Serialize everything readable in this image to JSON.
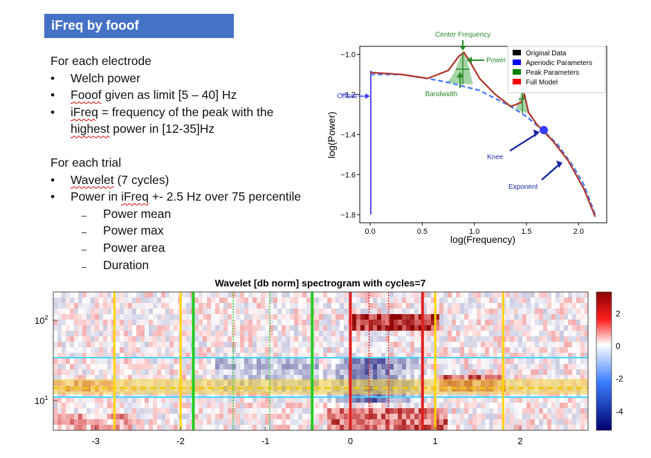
{
  "slide": {
    "title": "iFreq by fooof"
  },
  "text": {
    "electrode_head": "For each electrode",
    "electrode_items": [
      "Welch power",
      "Fooof given as limit [5 – 40] Hz",
      "iFreq = frequency of the peak with the",
      "highest power in [12-35]Hz"
    ],
    "trial_head": "For each trial",
    "trial_items": [
      "Wavelet (7 cycles)",
      "Power in iFreq +- 2.5 Hz over 75 percentile"
    ],
    "trial_subitems": [
      "Power mean",
      "Power max",
      "Power area",
      "Duration"
    ]
  },
  "fooof_plot": {
    "annotations": {
      "center_frequency": "Center Frequency",
      "power": "Power",
      "bandwidth": "Bandwidth",
      "offset": "Offset",
      "knee": "Knee",
      "exponent": "Exponent"
    },
    "legend": [
      "Original Data",
      "Aperiodic Parameters",
      "Peak Parameters",
      "Full Model"
    ],
    "colors": {
      "original": "#000000",
      "aperiodic": "#0000ff",
      "peak": "#008000",
      "model": "#ff0000"
    }
  },
  "chart_data": [
    {
      "type": "line",
      "xlabel": "log(Frequency)",
      "ylabel": "log(Power)",
      "xlim": [
        -0.1,
        2.27
      ],
      "ylim": [
        -1.84,
        -0.96
      ],
      "xticks": [
        "0.0",
        "0.5",
        "1.0",
        "1.5",
        "2.0"
      ],
      "yticks": [
        "−1.0",
        "−1.2",
        "−1.4",
        "−1.6",
        "−1.8"
      ],
      "series": [
        {
          "name": "Original Data",
          "x": [
            0.0,
            0.3,
            0.55,
            0.75,
            0.85,
            0.9,
            0.95,
            1.05,
            1.2,
            1.35,
            1.45,
            1.48,
            1.52,
            1.6,
            1.75,
            1.9,
            2.05,
            2.16
          ],
          "y": [
            -1.09,
            -1.1,
            -1.12,
            -1.08,
            -1.01,
            -0.99,
            -1.03,
            -1.12,
            -1.2,
            -1.26,
            -1.24,
            -1.2,
            -1.29,
            -1.35,
            -1.43,
            -1.53,
            -1.67,
            -1.81
          ]
        },
        {
          "name": "Aperiodic Parameters",
          "x": [
            0.0,
            0.3,
            0.55,
            0.75,
            0.9,
            1.05,
            1.2,
            1.35,
            1.5,
            1.68,
            1.8,
            1.95,
            2.05,
            2.16
          ],
          "y": [
            -1.1,
            -1.1,
            -1.12,
            -1.14,
            -1.16,
            -1.18,
            -1.22,
            -1.26,
            -1.31,
            -1.39,
            -1.45,
            -1.56,
            -1.65,
            -1.8
          ]
        }
      ]
    },
    {
      "type": "heatmap",
      "title": "Wavelet [db norm] spectrogram with cycles=7",
      "xlim": [
        -3.5,
        2.8
      ],
      "xticks": [
        "-3",
        "-2",
        "-1",
        "0",
        "1",
        "2"
      ],
      "yticks": [
        "10²",
        "10¹"
      ],
      "colorbar": {
        "range": [
          -5.2,
          3.3
        ],
        "ticks": [
          "2",
          "0",
          "-2",
          "-4"
        ]
      }
    }
  ]
}
